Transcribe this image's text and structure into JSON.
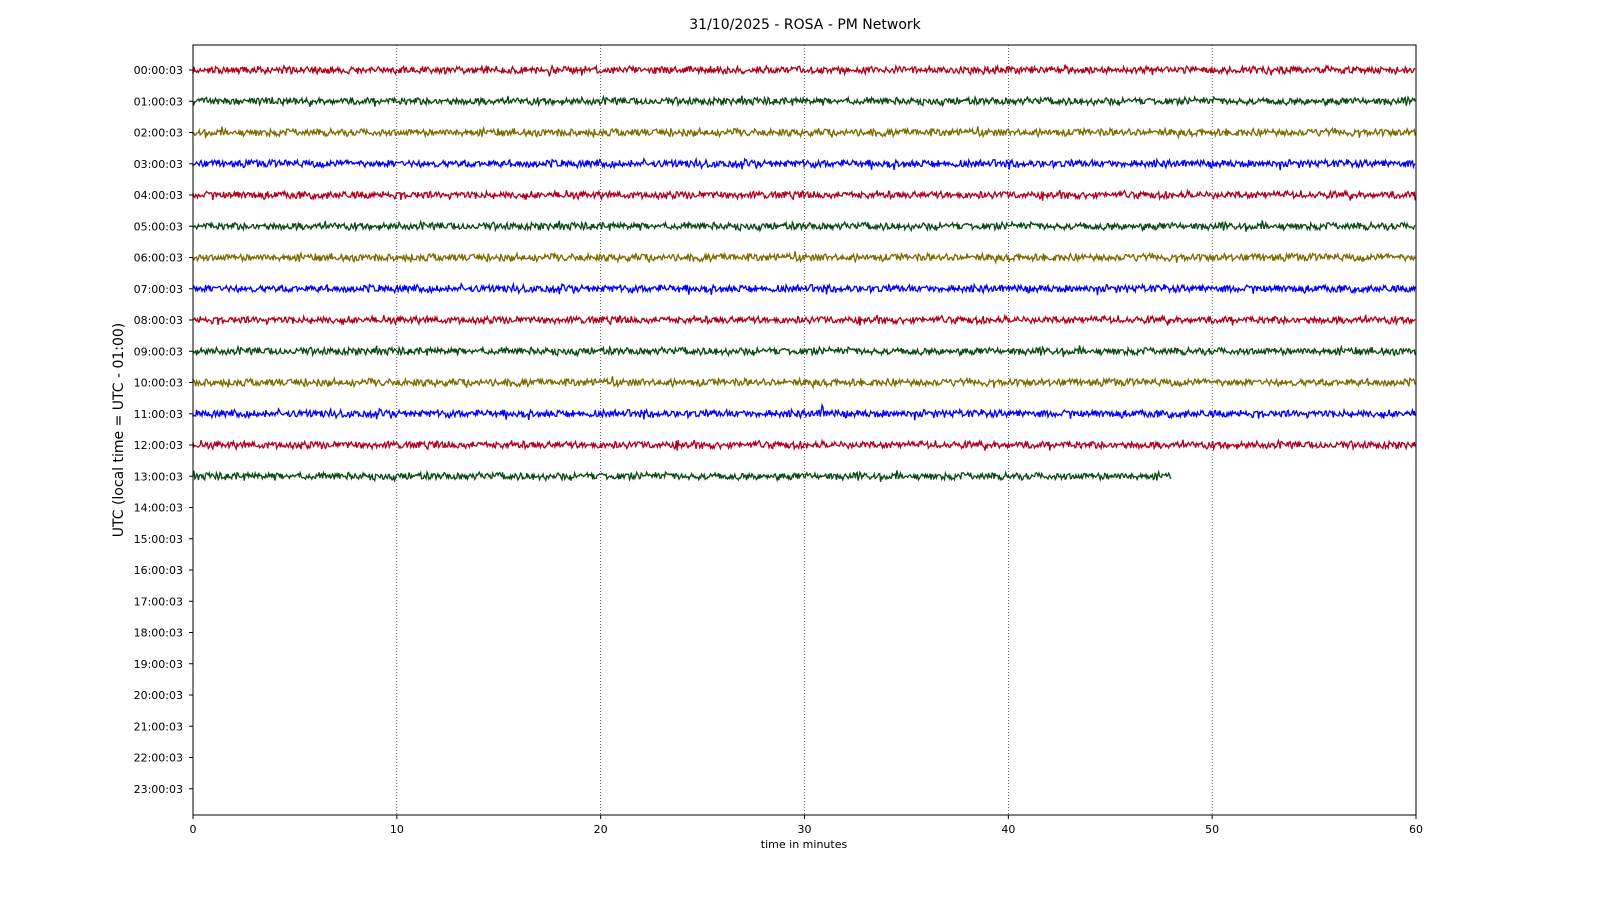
{
  "chart_data": {
    "type": "line",
    "title": "31/10/2025 - ROSA - PM Network",
    "xlabel": "time in minutes",
    "ylabel": "UTC (local time = UTC - 01:00)",
    "xlim": [
      0,
      60
    ],
    "x_ticks": [
      "0",
      "10",
      "20",
      "30",
      "40",
      "50",
      "60"
    ],
    "grid": "vertical dotted lines at each x tick",
    "row_labels": [
      "00:00:03",
      "01:00:03",
      "02:00:03",
      "03:00:03",
      "04:00:03",
      "05:00:03",
      "06:00:03",
      "07:00:03",
      "08:00:03",
      "09:00:03",
      "10:00:03",
      "11:00:03",
      "12:00:03",
      "13:00:03",
      "14:00:03",
      "15:00:03",
      "16:00:03",
      "17:00:03",
      "18:00:03",
      "19:00:03",
      "20:00:03",
      "21:00:03",
      "22:00:03",
      "23:00:03"
    ],
    "colors": [
      "#b0001b",
      "#0a4a12",
      "#7a6c00",
      "#0000ff"
    ],
    "series": [
      {
        "row": "00:00:03",
        "color": "#b0001b",
        "x_end": 60
      },
      {
        "row": "01:00:03",
        "color": "#0a4a12",
        "x_end": 60
      },
      {
        "row": "02:00:03",
        "color": "#7a6c00",
        "x_end": 60
      },
      {
        "row": "03:00:03",
        "color": "#0000ff",
        "x_end": 60
      },
      {
        "row": "04:00:03",
        "color": "#b0001b",
        "x_end": 60
      },
      {
        "row": "05:00:03",
        "color": "#0a4a12",
        "x_end": 60
      },
      {
        "row": "06:00:03",
        "color": "#7a6c00",
        "x_end": 60
      },
      {
        "row": "07:00:03",
        "color": "#0000ff",
        "x_end": 60
      },
      {
        "row": "08:00:03",
        "color": "#b0001b",
        "x_end": 60
      },
      {
        "row": "09:00:03",
        "color": "#0a4a12",
        "x_end": 60
      },
      {
        "row": "10:00:03",
        "color": "#7a6c00",
        "x_end": 60
      },
      {
        "row": "11:00:03",
        "color": "#0000ff",
        "x_end": 60,
        "spikes": [
          {
            "x": 30.9,
            "amplitude": 4
          }
        ]
      },
      {
        "row": "12:00:03",
        "color": "#b0001b",
        "x_end": 60,
        "spikes": [
          {
            "x": 23.8,
            "amplitude": 2
          }
        ]
      },
      {
        "row": "13:00:03",
        "color": "#0a4a12",
        "x_end": 48
      }
    ]
  }
}
